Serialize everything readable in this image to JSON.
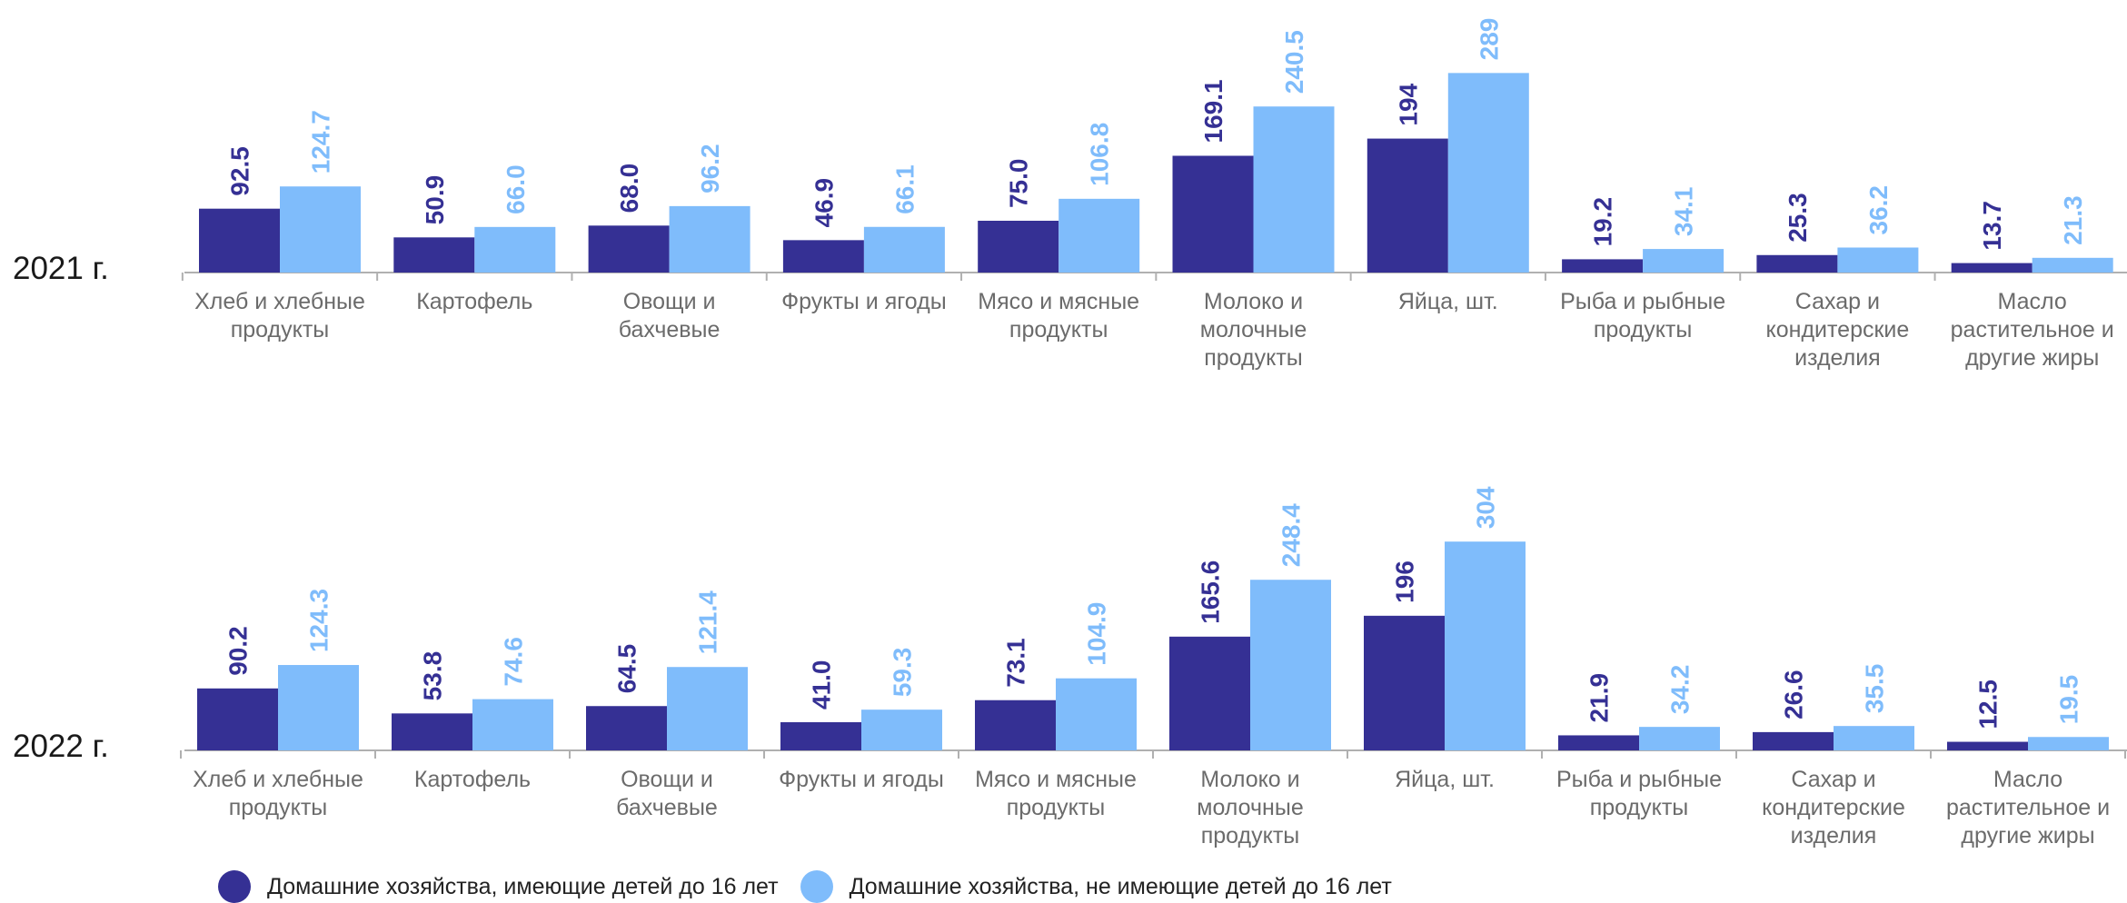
{
  "colors": {
    "series1": "#353094",
    "series2": "#7fbcfb",
    "axis": "#b0b0b0"
  },
  "legend": {
    "series1": "Домашние хозяйства, имеющие детей до 16 лет",
    "series2": "Домашние хозяйства, не имеющие детей до 16 лет"
  },
  "chart_data": [
    {
      "type": "bar",
      "panel_label": "2021 г.",
      "categories": [
        "Хлеб и хлебные продукты",
        "Картофель",
        "Овощи и бахчевые",
        "Фрукты и ягоды",
        "Мясо и мясные продукты",
        "Молоко и молочные продукты",
        "Яйца, шт.",
        "Рыба и рыбные продукты",
        "Сахар и кондитерские изделия",
        "Масло растительное и другие жиры"
      ],
      "category_lines": [
        [
          "Хлеб и хлебные",
          "продукты"
        ],
        [
          "Картофель"
        ],
        [
          "Овощи и",
          "бахчевые"
        ],
        [
          "Фрукты и ягоды"
        ],
        [
          "Мясо и мясные",
          "продукты"
        ],
        [
          "Молоко и",
          "молочные",
          "продукты"
        ],
        [
          "Яйца, шт."
        ],
        [
          "Рыба и рыбные",
          "продукты"
        ],
        [
          "Сахар и",
          "кондитерские",
          "изделия"
        ],
        [
          "Масло",
          "растительное и",
          "другие жиры"
        ]
      ],
      "series": [
        {
          "name": "Домашние хозяйства, имеющие детей до 16 лет",
          "values": [
            92.5,
            50.9,
            68.0,
            46.9,
            75.0,
            169.1,
            194,
            19.2,
            25.3,
            13.7
          ],
          "labels": [
            "92.5",
            "50.9",
            "68.0",
            "46.9",
            "75.0",
            "169.1",
            "194",
            "19.2",
            "25.3",
            "13.7"
          ]
        },
        {
          "name": "Домашние хозяйства, не имеющие детей до 16 лет",
          "values": [
            124.7,
            66.0,
            96.2,
            66.1,
            106.8,
            240.5,
            289,
            34.1,
            36.2,
            21.3
          ],
          "labels": [
            "124.7",
            "66.0",
            "96.2",
            "66.1",
            "106.8",
            "240.5",
            "289",
            "34.1",
            "36.2",
            "21.3"
          ]
        }
      ]
    },
    {
      "type": "bar",
      "panel_label": "2022 г.",
      "categories": [
        "Хлеб и хлебные продукты",
        "Картофель",
        "Овощи и бахчевые",
        "Фрукты и ягоды",
        "Мясо и мясные продукты",
        "Молоко и молочные продукты",
        "Яйца, шт.",
        "Рыба и рыбные продукты",
        "Сахар и кондитерские изделия",
        "Масло растительное и другие жиры"
      ],
      "category_lines": [
        [
          "Хлеб и хлебные",
          "продукты"
        ],
        [
          "Картофель"
        ],
        [
          "Овощи и",
          "бахчевые"
        ],
        [
          "Фрукты и ягоды"
        ],
        [
          "Мясо и мясные",
          "продукты"
        ],
        [
          "Молоко и",
          "молочные",
          "продукты"
        ],
        [
          "Яйца, шт."
        ],
        [
          "Рыба и рыбные",
          "продукты"
        ],
        [
          "Сахар и",
          "кондитерские",
          "изделия"
        ],
        [
          "Масло",
          "растительное и",
          "другие жиры"
        ]
      ],
      "series": [
        {
          "name": "Домашние хозяйства, имеющие детей до 16 лет",
          "values": [
            90.2,
            53.8,
            64.5,
            41.0,
            73.1,
            165.6,
            196,
            21.9,
            26.6,
            12.5
          ],
          "labels": [
            "90.2",
            "53.8",
            "64.5",
            "41.0",
            "73.1",
            "165.6",
            "196",
            "21.9",
            "26.6",
            "12.5"
          ]
        },
        {
          "name": "Домашние хозяйства, не имеющие детей до 16 лет",
          "values": [
            124.3,
            74.6,
            121.4,
            59.3,
            104.9,
            248.4,
            304,
            34.2,
            35.5,
            19.5
          ],
          "labels": [
            "124.3",
            "74.6",
            "121.4",
            "59.3",
            "104.9",
            "248.4",
            "304",
            "34.2",
            "35.5",
            "19.5"
          ]
        }
      ]
    }
  ]
}
